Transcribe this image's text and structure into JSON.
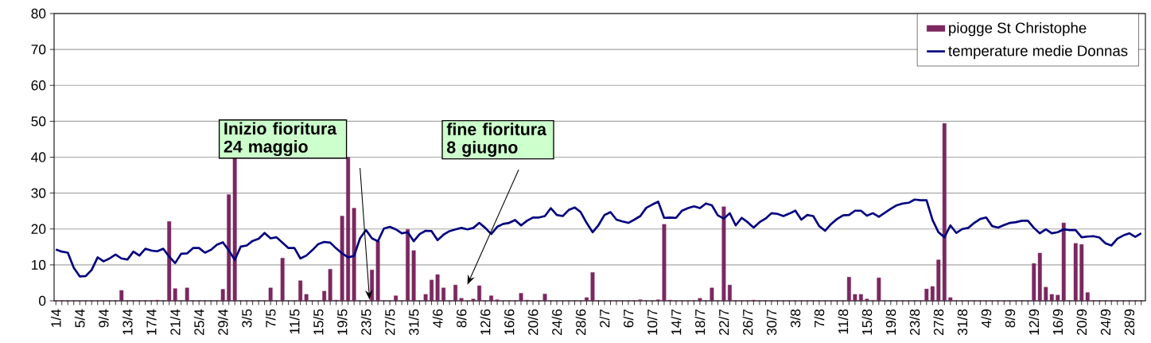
{
  "chart_data": {
    "type": "bar",
    "categories": [
      "1/4",
      null,
      null,
      null,
      "5/4",
      null,
      null,
      null,
      "9/4",
      null,
      null,
      null,
      "13/4",
      null,
      null,
      null,
      "17/4",
      null,
      null,
      null,
      "21/4",
      null,
      null,
      null,
      "25/4",
      null,
      null,
      null,
      "29/4",
      null,
      null,
      null,
      "3/5",
      null,
      null,
      null,
      "7/5",
      null,
      null,
      null,
      "11/5",
      null,
      null,
      null,
      "15/5",
      null,
      null,
      null,
      "19/5",
      null,
      null,
      null,
      "23/5",
      null,
      null,
      null,
      "27/5",
      null,
      null,
      null,
      "31/5",
      null,
      null,
      null,
      "4/6",
      null,
      null,
      null,
      "8/6",
      null,
      null,
      null,
      "12/6",
      null,
      null,
      null,
      "16/6",
      null,
      null,
      null,
      "20/6",
      null,
      null,
      null,
      "24/6",
      null,
      null,
      null,
      "28/6",
      null,
      null,
      null,
      "2/7",
      null,
      null,
      null,
      "6/7",
      null,
      null,
      null,
      "10/7",
      null,
      null,
      null,
      "14/7",
      null,
      null,
      null,
      "18/7",
      null,
      null,
      null,
      "22/7",
      null,
      null,
      null,
      "26/7",
      null,
      null,
      null,
      "30/7",
      null,
      null,
      null,
      "3/8",
      null,
      null,
      null,
      "7/8",
      null,
      null,
      null,
      "11/8",
      null,
      null,
      null,
      "15/8",
      null,
      null,
      null,
      "19/8",
      null,
      null,
      null,
      "23/8",
      null,
      null,
      null,
      "27/8",
      null,
      null,
      null,
      "31/8",
      null,
      null,
      null,
      "4/9",
      null,
      null,
      null,
      "8/9",
      null,
      null,
      null,
      "12/9",
      null,
      null,
      null,
      "16/9",
      null,
      null,
      null,
      "20/9",
      null,
      null,
      null,
      "24/9",
      null,
      null,
      null,
      "28/9",
      null,
      null
    ],
    "series": [
      {
        "name": "piogge St Christophe",
        "color": "#7b2860",
        "values": [
          0,
          0,
          0,
          0,
          0,
          0,
          0,
          0,
          0,
          0,
          0,
          2.9,
          0,
          0,
          0,
          0,
          0,
          0.2,
          0,
          22.1,
          3.4,
          0,
          3.6,
          0,
          0,
          0,
          0,
          0,
          3.2,
          29.6,
          40,
          0,
          0,
          0,
          0,
          0,
          3.6,
          0,
          11.9,
          0,
          0,
          5.6,
          1.8,
          0,
          0,
          2.7,
          8.8,
          0.2,
          23.6,
          40,
          25.8,
          0,
          0,
          8.6,
          16.6,
          0,
          0,
          1.4,
          0,
          19.9,
          14,
          0,
          1.8,
          5.8,
          7.3,
          3.6,
          0,
          4.4,
          0.7,
          0,
          0.5,
          4.2,
          0,
          1.4,
          0.3,
          0,
          0,
          0,
          2.1,
          0.2,
          0,
          0,
          1.9,
          0,
          0,
          0,
          0,
          0,
          0,
          0.9,
          7.9,
          0,
          0,
          0,
          0,
          0,
          0,
          0,
          0.3,
          0,
          0,
          0.3,
          21.3,
          0.2,
          0,
          0,
          0,
          0,
          0.7,
          0,
          3.6,
          0,
          26.2,
          4.4,
          0,
          0,
          0,
          0.2,
          0,
          0,
          0,
          0,
          0,
          0,
          0,
          0,
          0,
          0,
          0,
          0,
          0,
          0,
          0,
          6.6,
          1.8,
          1.8,
          0.5,
          0,
          6.4,
          0,
          0,
          0,
          0,
          0,
          0,
          0,
          3.3,
          4,
          11.4,
          49.4,
          0.9,
          0,
          0,
          0,
          0,
          0,
          0,
          0,
          0,
          0,
          0,
          0,
          0,
          0,
          10.4,
          13.3,
          3.8,
          1.8,
          1.6,
          21.7,
          0,
          16,
          15.7,
          2.3,
          0,
          0,
          0,
          0,
          0,
          0,
          0,
          0,
          0
        ]
      },
      {
        "name": "temperature medie Donnas",
        "type": "line",
        "color": "#000080",
        "values": [
          14.3,
          13.7,
          13.4,
          9.2,
          6.8,
          6.9,
          8.6,
          12.1,
          11.0,
          11.8,
          12.9,
          11.8,
          11.5,
          13.7,
          12.6,
          14.5,
          14.0,
          13.8,
          14.5,
          12.3,
          10.5,
          13.1,
          13.2,
          14.7,
          14.7,
          13.4,
          14.2,
          15.6,
          16.3,
          14.0,
          11.4,
          15.1,
          15.4,
          16.7,
          17.3,
          18.9,
          17.4,
          17.7,
          16.2,
          14.7,
          14.7,
          11.8,
          12.6,
          14.1,
          15.8,
          16.4,
          16.2,
          14.6,
          13.2,
          12.1,
          12.5,
          17.4,
          19.7,
          17.4,
          16.6,
          20.1,
          20.6,
          19.9,
          18.8,
          19.1,
          16.6,
          18.6,
          19.5,
          19.4,
          16.9,
          18.4,
          19.4,
          19.9,
          20.3,
          19.9,
          20.3,
          21.7,
          20.3,
          18.6,
          20.6,
          21.4,
          21.7,
          22.5,
          21.0,
          22.3,
          23.2,
          23.2,
          23.6,
          25.8,
          23.9,
          23.6,
          25.3,
          26.0,
          24.7,
          21.7,
          19.1,
          21.1,
          23.9,
          24.7,
          22.6,
          22.1,
          21.7,
          22.6,
          23.6,
          25.9,
          26.8,
          27.6,
          23.1,
          23.2,
          23.1,
          25.1,
          25.8,
          26.3,
          25.8,
          27.1,
          26.6,
          23.8,
          22.9,
          24.4,
          21.0,
          23.1,
          21.9,
          20.4,
          21.9,
          22.9,
          24.4,
          24.2,
          23.6,
          24.3,
          25.1,
          22.6,
          23.9,
          23.6,
          20.8,
          19.5,
          21.4,
          22.8,
          23.8,
          23.9,
          25.1,
          25.1,
          23.7,
          24.4,
          23.4,
          24.5,
          25.6,
          26.6,
          27.1,
          27.3,
          28.2,
          28.0,
          28.0,
          22.5,
          19.1,
          17.7,
          21.0,
          18.9,
          20.0,
          20.3,
          21.7,
          22.8,
          23.2,
          20.8,
          20.4,
          21.1,
          21.7,
          21.9,
          22.3,
          22.3,
          20.3,
          18.8,
          19.9,
          18.8,
          19.1,
          19.9,
          19.7,
          19.7,
          17.7,
          17.9,
          18.0,
          17.6,
          16.0,
          15.4,
          17.3,
          18.2,
          18.8,
          17.8,
          18.8
        ]
      }
    ],
    "ylim": [
      0,
      80
    ],
    "yticks": [
      0,
      10,
      20,
      30,
      40,
      50,
      60,
      70,
      80
    ],
    "grid": "y",
    "legend": "top right",
    "annotations": [
      "Inizio fioritura 24 maggio",
      "fine fioritura 8 giugno"
    ]
  }
}
